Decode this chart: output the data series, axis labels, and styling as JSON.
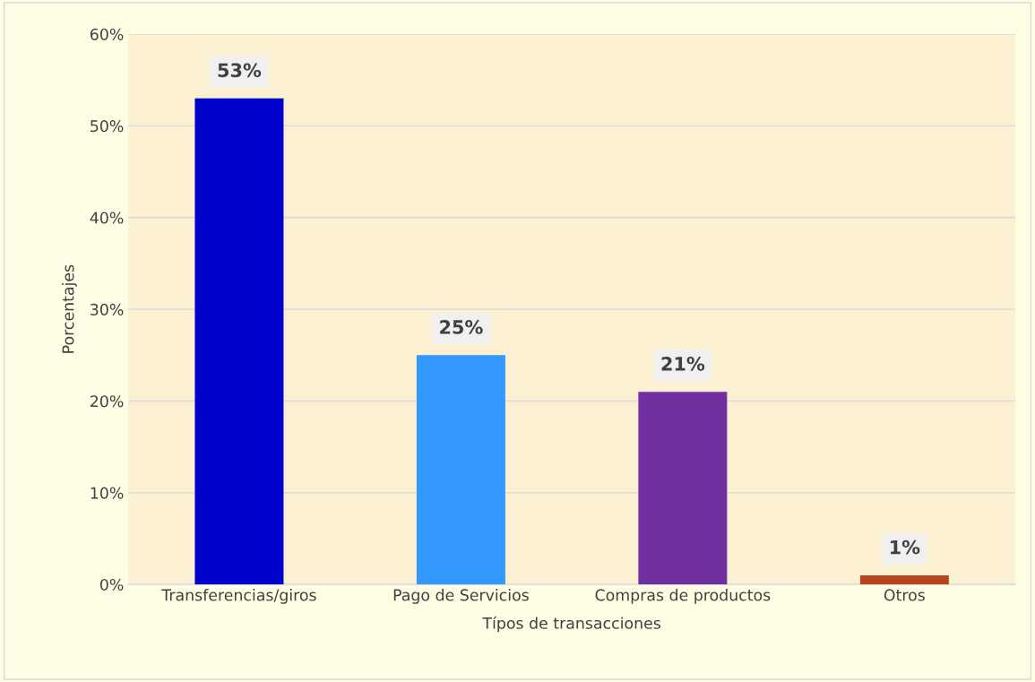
{
  "chart_data": {
    "type": "bar",
    "xlabel": "Típos de transacciones",
    "ylabel": "Porcentajes",
    "categories": [
      "Transferencias/giros",
      "Pago de Servicios",
      "Compras de productos",
      "Otros"
    ],
    "values": [
      53,
      25,
      21,
      1
    ],
    "colors": [
      "#0000cc",
      "#3399ff",
      "#7030a0",
      "#b5451b"
    ],
    "value_labels": [
      "53%",
      "25%",
      "21%",
      "1%"
    ],
    "ylim": [
      0,
      60
    ],
    "yticks": [
      {
        "value": 0,
        "label": "0%"
      },
      {
        "value": 10,
        "label": "10%"
      },
      {
        "value": 20,
        "label": "20%"
      },
      {
        "value": 30,
        "label": "30%"
      },
      {
        "value": 40,
        "label": "40%"
      },
      {
        "value": 50,
        "label": "50%"
      },
      {
        "value": 60,
        "label": "60%"
      }
    ],
    "grid": "y",
    "legend": false
  }
}
